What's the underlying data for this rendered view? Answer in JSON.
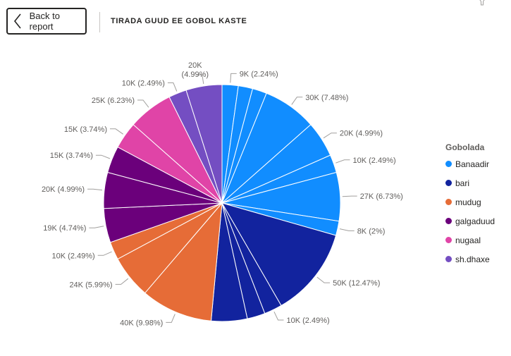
{
  "header": {
    "back_label": "Back to report",
    "title": "TIRADA GUUD EE GOBOL KASTE"
  },
  "legend": {
    "title": "Gobolada",
    "items": [
      {
        "label": "Banaadir",
        "color": "#118DFF"
      },
      {
        "label": "bari",
        "color": "#12239E"
      },
      {
        "label": "mudug",
        "color": "#E66C37"
      },
      {
        "label": "galgaduud",
        "color": "#6B007B"
      },
      {
        "label": "nugaal",
        "color": "#E044A7"
      },
      {
        "label": "sh.dhaxe",
        "color": "#744EC2"
      }
    ]
  },
  "chart_data": {
    "type": "pie",
    "title": "",
    "legend_title": "Gobolada",
    "legend_position": "right",
    "slices": [
      {
        "series": "Banaadir",
        "value": 9000,
        "percent": 2.24,
        "label": "9K (2.24%)"
      },
      {
        "series": "Banaadir",
        "value": 8000,
        "percent": 2.0,
        "label": ""
      },
      {
        "series": "Banaadir",
        "value": 8000,
        "percent": 2.0,
        "label": ""
      },
      {
        "series": "Banaadir",
        "value": 30000,
        "percent": 7.48,
        "label": "30K (7.48%)"
      },
      {
        "series": "Banaadir",
        "value": 20000,
        "percent": 4.99,
        "label": "20K (4.99%)"
      },
      {
        "series": "Banaadir",
        "value": 10000,
        "percent": 2.49,
        "label": "10K (2.49%)"
      },
      {
        "series": "Banaadir",
        "value": 27000,
        "percent": 6.73,
        "label": "27K (6.73%)"
      },
      {
        "series": "Banaadir",
        "value": 8000,
        "percent": 2.0,
        "label": "8K (2%)"
      },
      {
        "series": "bari",
        "value": 50000,
        "percent": 12.47,
        "label": "50K (12.47%)"
      },
      {
        "series": "bari",
        "value": 10000,
        "percent": 2.49,
        "label": "10K (2.49%)"
      },
      {
        "series": "bari",
        "value": 10000,
        "percent": 2.49,
        "label": ""
      },
      {
        "series": "bari",
        "value": 20000,
        "percent": 4.99,
        "label": ""
      },
      {
        "series": "mudug",
        "value": 40000,
        "percent": 9.98,
        "label": "40K (9.98%)"
      },
      {
        "series": "mudug",
        "value": 24000,
        "percent": 5.99,
        "label": "24K (5.99%)"
      },
      {
        "series": "mudug",
        "value": 10000,
        "percent": 2.49,
        "label": "10K (2.49%)"
      },
      {
        "series": "galgaduud",
        "value": 19000,
        "percent": 4.74,
        "label": "19K (4.74%)"
      },
      {
        "series": "galgaduud",
        "value": 20000,
        "percent": 4.99,
        "label": "20K (4.99%)"
      },
      {
        "series": "galgaduud",
        "value": 15000,
        "percent": 3.74,
        "label": "15K (3.74%)"
      },
      {
        "series": "nugaal",
        "value": 15000,
        "percent": 3.74,
        "label": "15K (3.74%)"
      },
      {
        "series": "nugaal",
        "value": 25000,
        "percent": 6.23,
        "label": "25K (6.23%)"
      },
      {
        "series": "sh.dhaxe",
        "value": 10000,
        "percent": 2.49,
        "label": "10K (2.49%)"
      },
      {
        "series": "sh.dhaxe",
        "value": 20000,
        "percent": 4.99,
        "label": "20K\n(4.99%)"
      }
    ]
  }
}
